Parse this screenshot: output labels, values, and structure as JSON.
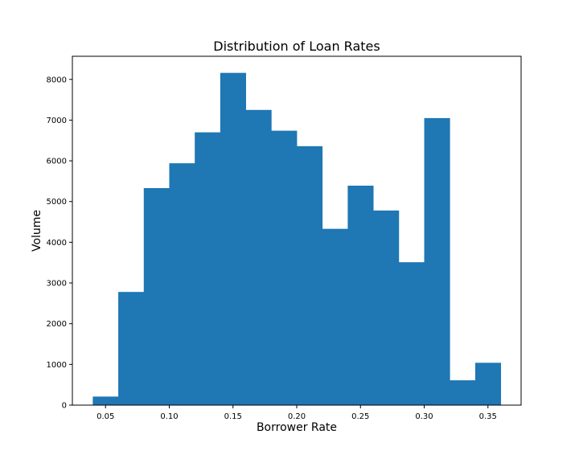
{
  "chart_data": {
    "type": "bar",
    "subtype": "histogram",
    "title": "Distribution of Loan Rates",
    "xlabel": "Borrower Rate",
    "ylabel": "Volume",
    "bin_edges": [
      0.04,
      0.06,
      0.08,
      0.1,
      0.12,
      0.14,
      0.16,
      0.18,
      0.2,
      0.22,
      0.24,
      0.26,
      0.28,
      0.3,
      0.32,
      0.34,
      0.36
    ],
    "values": [
      210,
      2780,
      5330,
      5940,
      6700,
      8160,
      7250,
      6740,
      6360,
      4330,
      5390,
      4780,
      3510,
      7050,
      610,
      1040
    ],
    "xlim": [
      0.024,
      0.376
    ],
    "ylim": [
      0,
      8568
    ],
    "xticks": [
      0.05,
      0.1,
      0.15,
      0.2,
      0.25,
      0.3,
      0.35
    ],
    "xtick_labels": [
      "0.05",
      "0.10",
      "0.15",
      "0.20",
      "0.25",
      "0.30",
      "0.35"
    ],
    "yticks": [
      0,
      1000,
      2000,
      3000,
      4000,
      5000,
      6000,
      7000,
      8000
    ],
    "ytick_labels": [
      "0",
      "1000",
      "2000",
      "3000",
      "4000",
      "5000",
      "6000",
      "7000",
      "8000"
    ],
    "bar_color": "#1f77b4",
    "grid": false,
    "legend": "none"
  }
}
